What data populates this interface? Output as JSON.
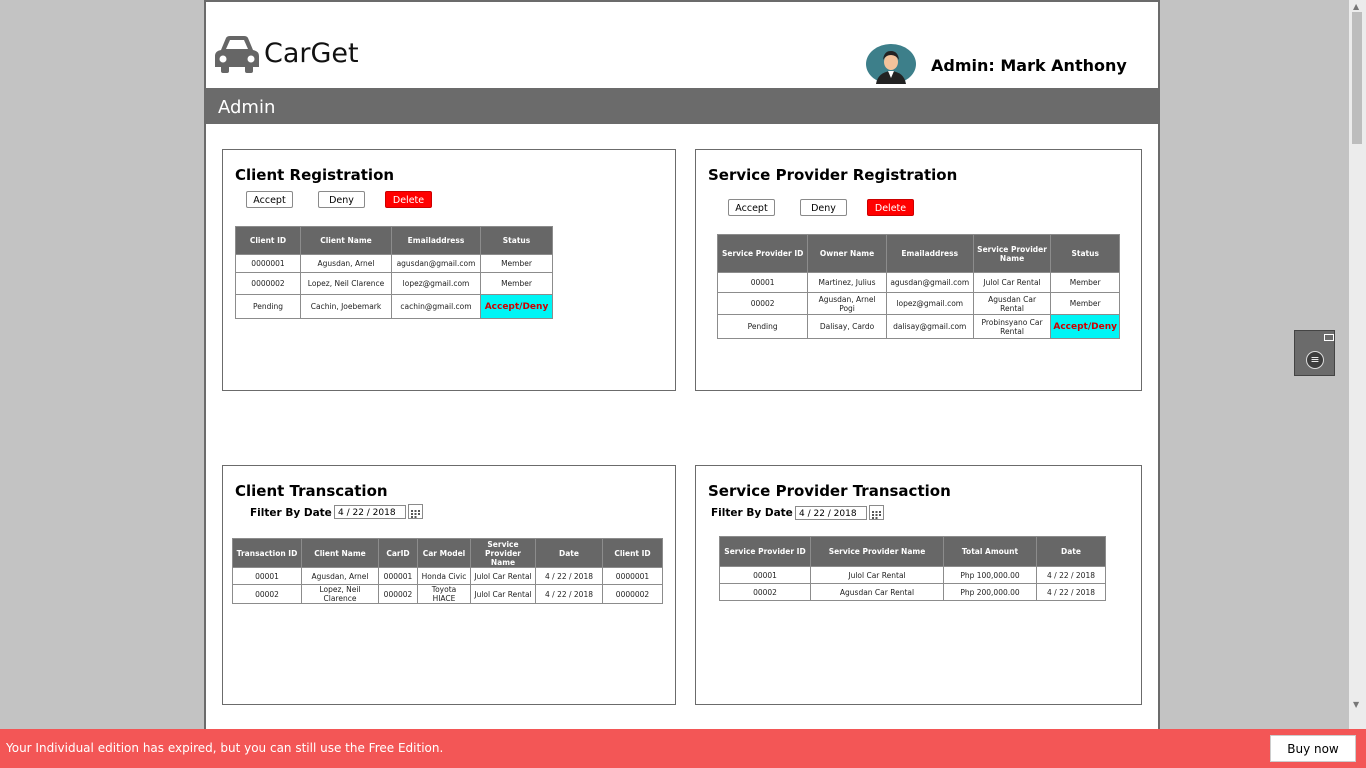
{
  "app": {
    "name": "CarGet",
    "admin_label": "Admin: Mark Anthony",
    "section_title": "Admin"
  },
  "client_registration": {
    "title": "Client Registration",
    "buttons": {
      "accept": "Accept",
      "deny": "Deny",
      "delete": "Delete"
    },
    "columns": [
      "Client ID",
      "Client Name",
      "Emailaddress",
      "Status"
    ],
    "rows": [
      [
        "0000001",
        "Agusdan, Arnel",
        "agusdan@gmail.com",
        "Member"
      ],
      [
        "0000002",
        "Lopez, Neil Clarence",
        "lopez@gmail.com",
        "Member"
      ],
      [
        "Pending",
        "Cachin, Joebemark",
        "cachin@gmail.com",
        "Accept/Deny"
      ]
    ]
  },
  "sp_registration": {
    "title": "Service Provider Registration",
    "buttons": {
      "accept": "Accept",
      "deny": "Deny",
      "delete": "Delete"
    },
    "columns": [
      "Service Provider ID",
      "Owner Name",
      "Emailaddress",
      "Service Provider Name",
      "Status"
    ],
    "rows": [
      [
        "00001",
        "Martinez, Julius",
        "agusdan@gmail.com",
        "Julol Car Rental",
        "Member"
      ],
      [
        "00002",
        "Agusdan, Arnel Pogi",
        "lopez@gmail.com",
        "Agusdan Car Rental",
        "Member"
      ],
      [
        "Pending",
        "Dalisay, Cardo",
        "dalisay@gmail.com",
        "Probinsyano Car Rental",
        "Accept/Deny"
      ]
    ]
  },
  "client_transaction": {
    "title": "Client Transcation",
    "filter_label": "Filter By Date",
    "filter_date": "4 / 22 / 2018",
    "columns": [
      "Transaction ID",
      "Client Name",
      "CarID",
      "Car Model",
      "Service Provider Name",
      "Date",
      "Client ID"
    ],
    "rows": [
      [
        "00001",
        "Agusdan, Arnel",
        "000001",
        "Honda Civic",
        "Julol Car Rental",
        "4 / 22 / 2018",
        "0000001"
      ],
      [
        "00002",
        "Lopez, Neil Clarence",
        "000002",
        "Toyota HIACE",
        "Julol Car Rental",
        "4 / 22 / 2018",
        "0000002"
      ]
    ]
  },
  "sp_transaction": {
    "title": "Service Provider Transaction",
    "filter_label": "Filter By Date",
    "filter_date": "4 / 22 / 2018",
    "columns": [
      "Service Provider ID",
      "Service Provider Name",
      "Total Amount",
      "Date"
    ],
    "rows": [
      [
        "00001",
        "Julol Car Rental",
        "Php 100,000.00",
        "4 / 22 / 2018"
      ],
      [
        "00002",
        "Agusdan Car Rental",
        "Php 200,000.00",
        "4 / 22 / 2018"
      ]
    ]
  },
  "footer": {
    "message": "Your Individual edition has expired, but you can still use the Free Edition.",
    "buy_label": "Buy now"
  },
  "colors": {
    "header_gray": "#6b6b6b",
    "delete_red": "#ff0000",
    "status_cyan": "#00f5f5",
    "footer_red": "#f35656"
  },
  "icons": [
    "car-icon",
    "admin-avatar",
    "calendar-icon",
    "menu-icon",
    "minimize-icon"
  ]
}
